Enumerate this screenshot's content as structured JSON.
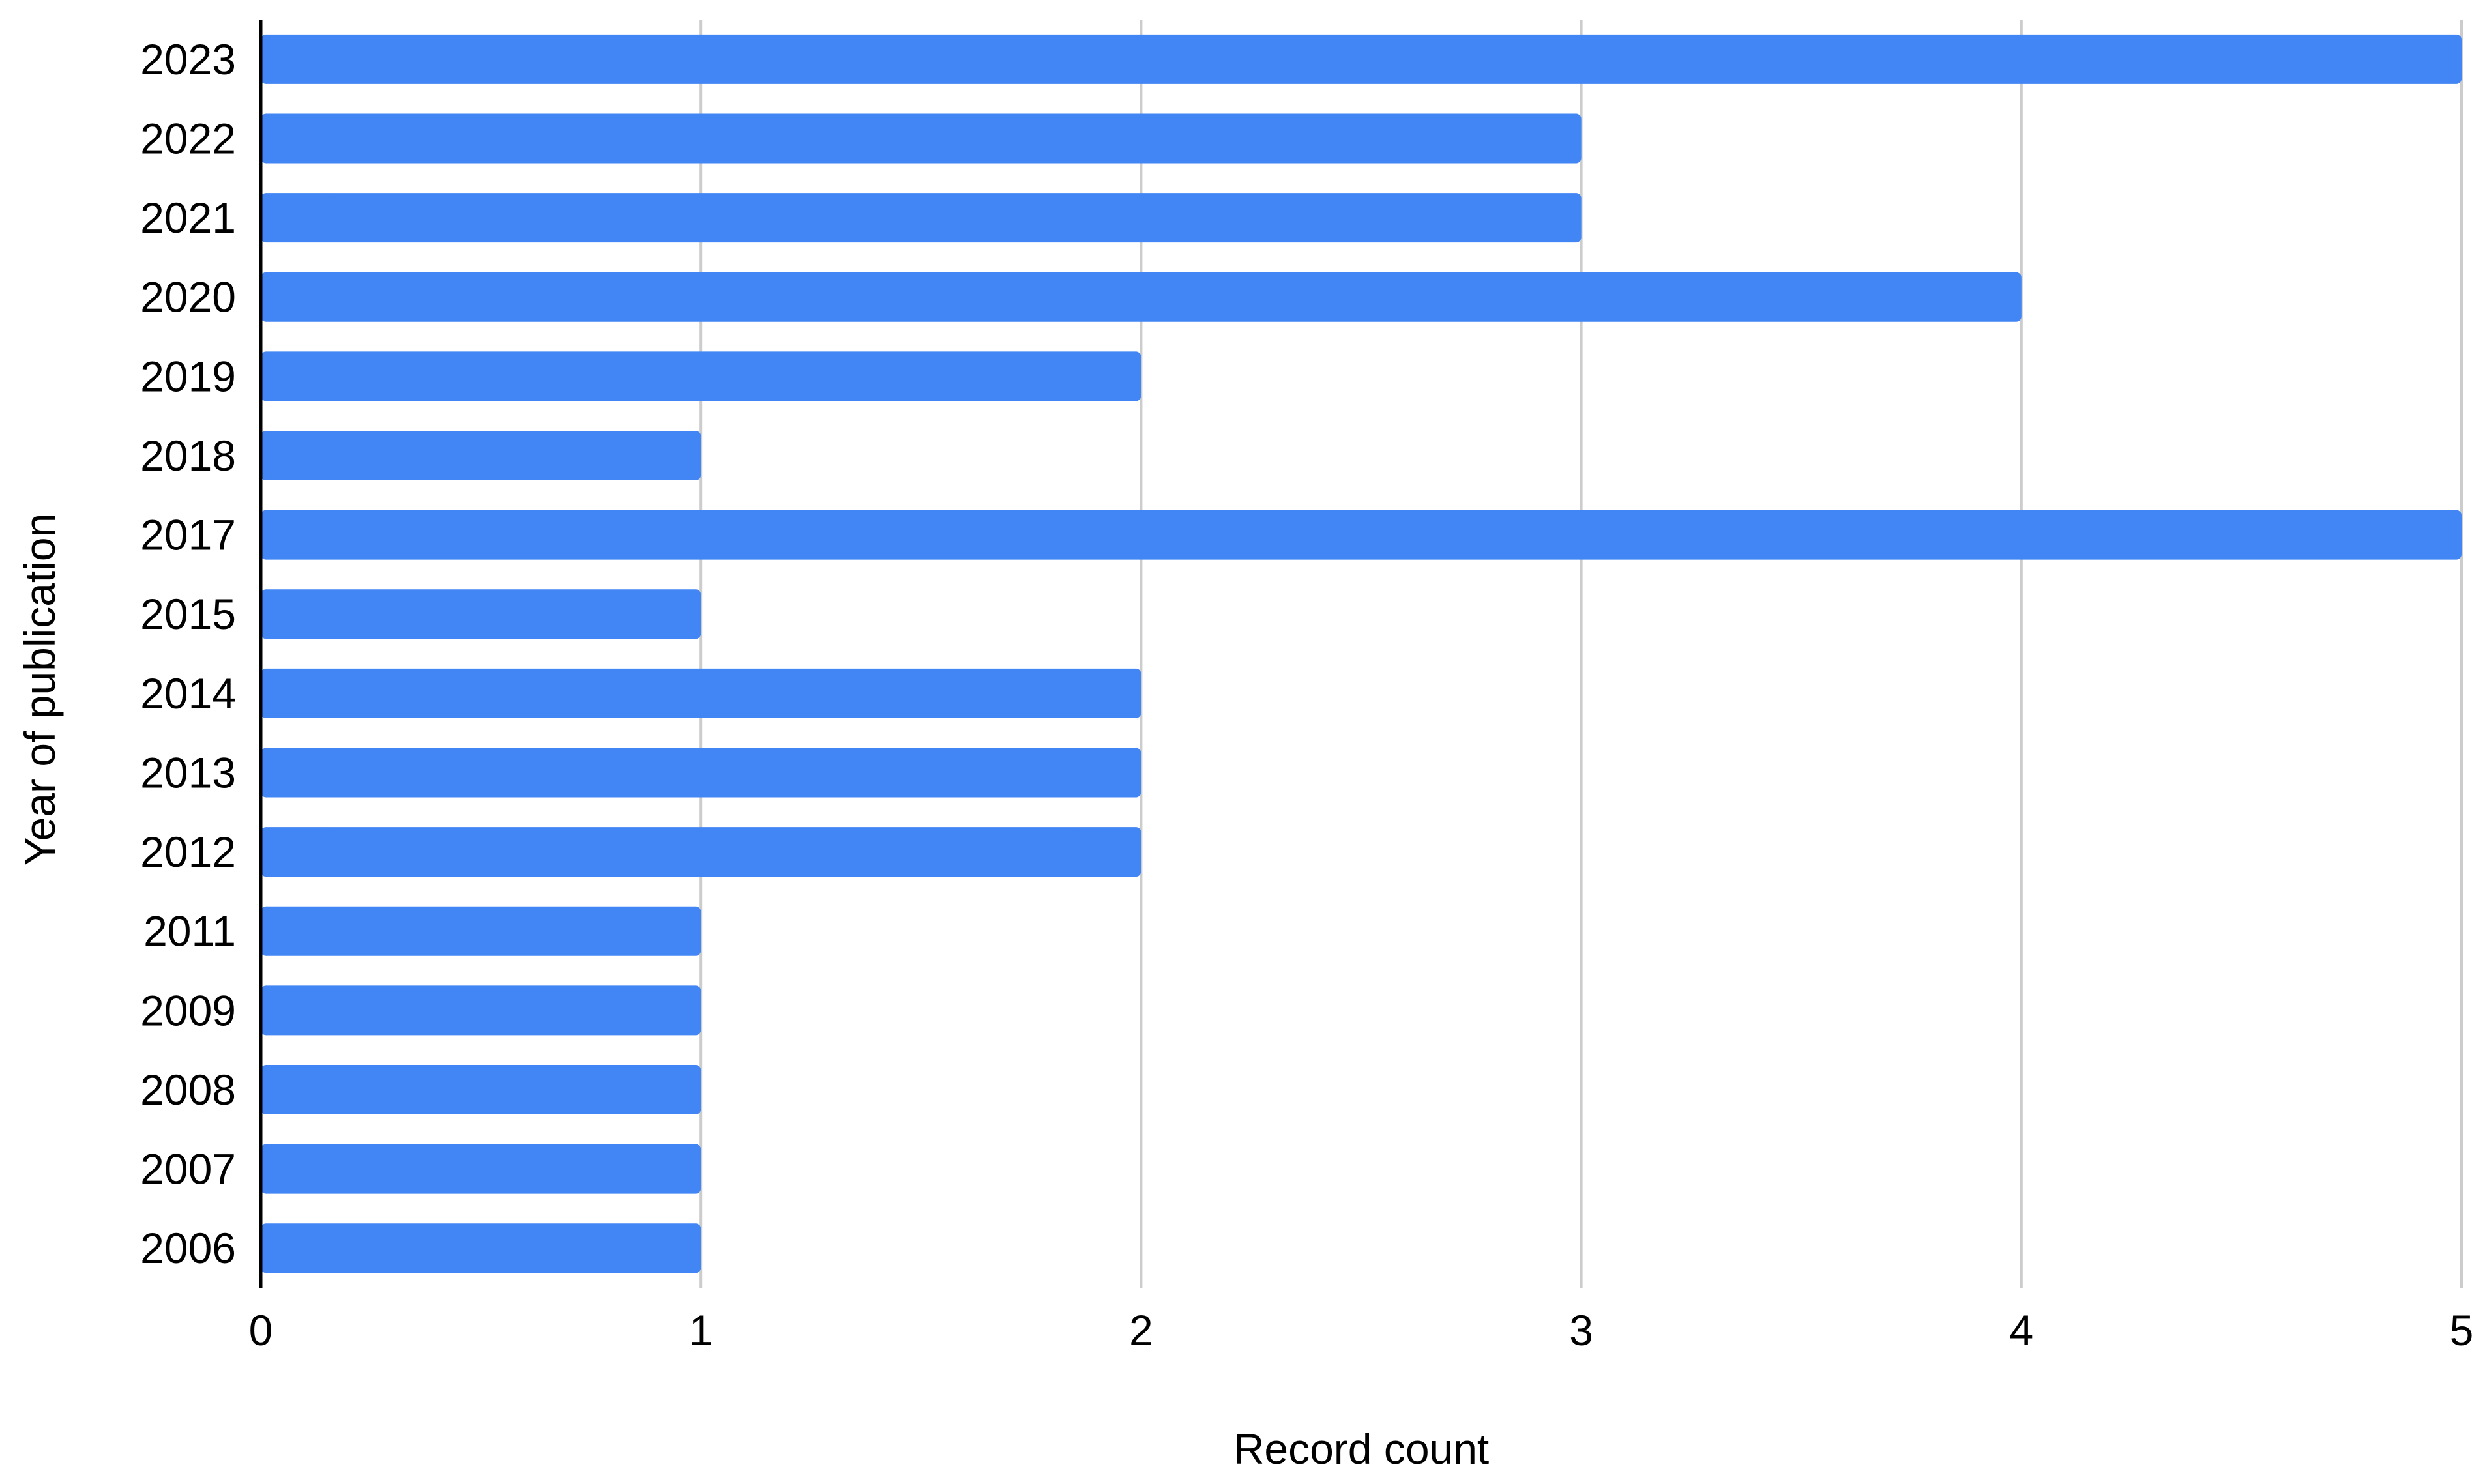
{
  "chart_data": {
    "type": "bar",
    "orientation": "horizontal",
    "categories": [
      "2023",
      "2022",
      "2021",
      "2020",
      "2019",
      "2018",
      "2017",
      "2015",
      "2014",
      "2013",
      "2012",
      "2011",
      "2009",
      "2008",
      "2007",
      "2006"
    ],
    "values": [
      5,
      3,
      3,
      4,
      2,
      1,
      5,
      1,
      2,
      2,
      2,
      1,
      1,
      1,
      1,
      1
    ],
    "xlabel": "Record count",
    "ylabel": "Year of publication",
    "xlim": [
      0,
      5
    ],
    "xticks": [
      "0",
      "1",
      "2",
      "3",
      "4",
      "5"
    ],
    "grid": "vertical",
    "legend": "none",
    "bar_color": "#4285f4",
    "grid_color": "#cccccc",
    "axis_color": "#000000"
  }
}
